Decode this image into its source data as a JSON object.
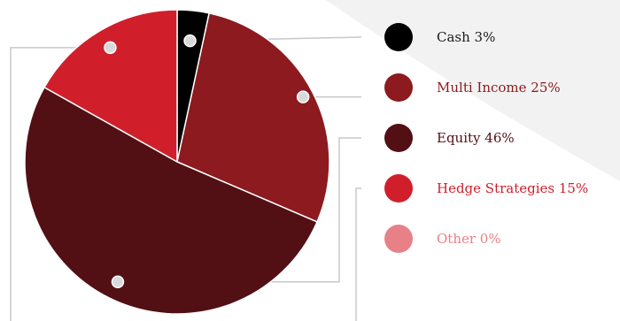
{
  "chart_data": {
    "type": "pie",
    "title": "",
    "slices": [
      {
        "label": "Cash 3%",
        "value": 3,
        "color": "#000000",
        "text_color": "#1a1a1a"
      },
      {
        "label": "Multi Income 25%",
        "value": 25,
        "color": "#8c1a1f",
        "text_color": "#8c1a1f"
      },
      {
        "label": "Equity 46%",
        "value": 46,
        "color": "#521015",
        "text_color": "#521015"
      },
      {
        "label": "Hedge Strategies 15%",
        "value": 15,
        "color": "#d01f2b",
        "text_color": "#d01f2b"
      },
      {
        "label": "Other 0%",
        "value": 0,
        "color": "#e88187",
        "text_color": "#e88187"
      }
    ],
    "legend_position": "right",
    "background_shape_color": "#f2f2f2",
    "leader_line_color": "#c8c8c8"
  }
}
